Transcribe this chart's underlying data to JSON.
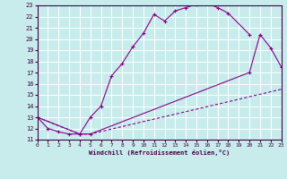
{
  "xlabel": "Windchill (Refroidissement éolien,°C)",
  "bg_color": "#c8ecec",
  "grid_color": "#ffffff",
  "line_color": "#880088",
  "xlim": [
    0,
    23
  ],
  "ylim": [
    11,
    23
  ],
  "xticks": [
    0,
    1,
    2,
    3,
    4,
    5,
    6,
    7,
    8,
    9,
    10,
    11,
    12,
    13,
    14,
    15,
    16,
    17,
    18,
    19,
    20,
    21,
    22,
    23
  ],
  "yticks": [
    11,
    12,
    13,
    14,
    15,
    16,
    17,
    18,
    19,
    20,
    21,
    22,
    23
  ],
  "line1_x": [
    0,
    1,
    2,
    3,
    4,
    5,
    6,
    7,
    8,
    9,
    10,
    11,
    12,
    13,
    14,
    15,
    16,
    17,
    18,
    20
  ],
  "line1_y": [
    13.0,
    12.0,
    11.7,
    11.5,
    11.5,
    13.0,
    14.0,
    16.7,
    17.8,
    19.3,
    20.5,
    22.2,
    21.6,
    22.5,
    22.8,
    23.1,
    23.2,
    22.8,
    22.3,
    20.4
  ],
  "line2_x": [
    0,
    4,
    5,
    23
  ],
  "line2_y": [
    13.0,
    11.5,
    11.5,
    15.5
  ],
  "line3_x": [
    0,
    4,
    5,
    20,
    21,
    22,
    23
  ],
  "line3_y": [
    13.0,
    11.5,
    11.5,
    17.0,
    20.4,
    19.2,
    17.5
  ]
}
